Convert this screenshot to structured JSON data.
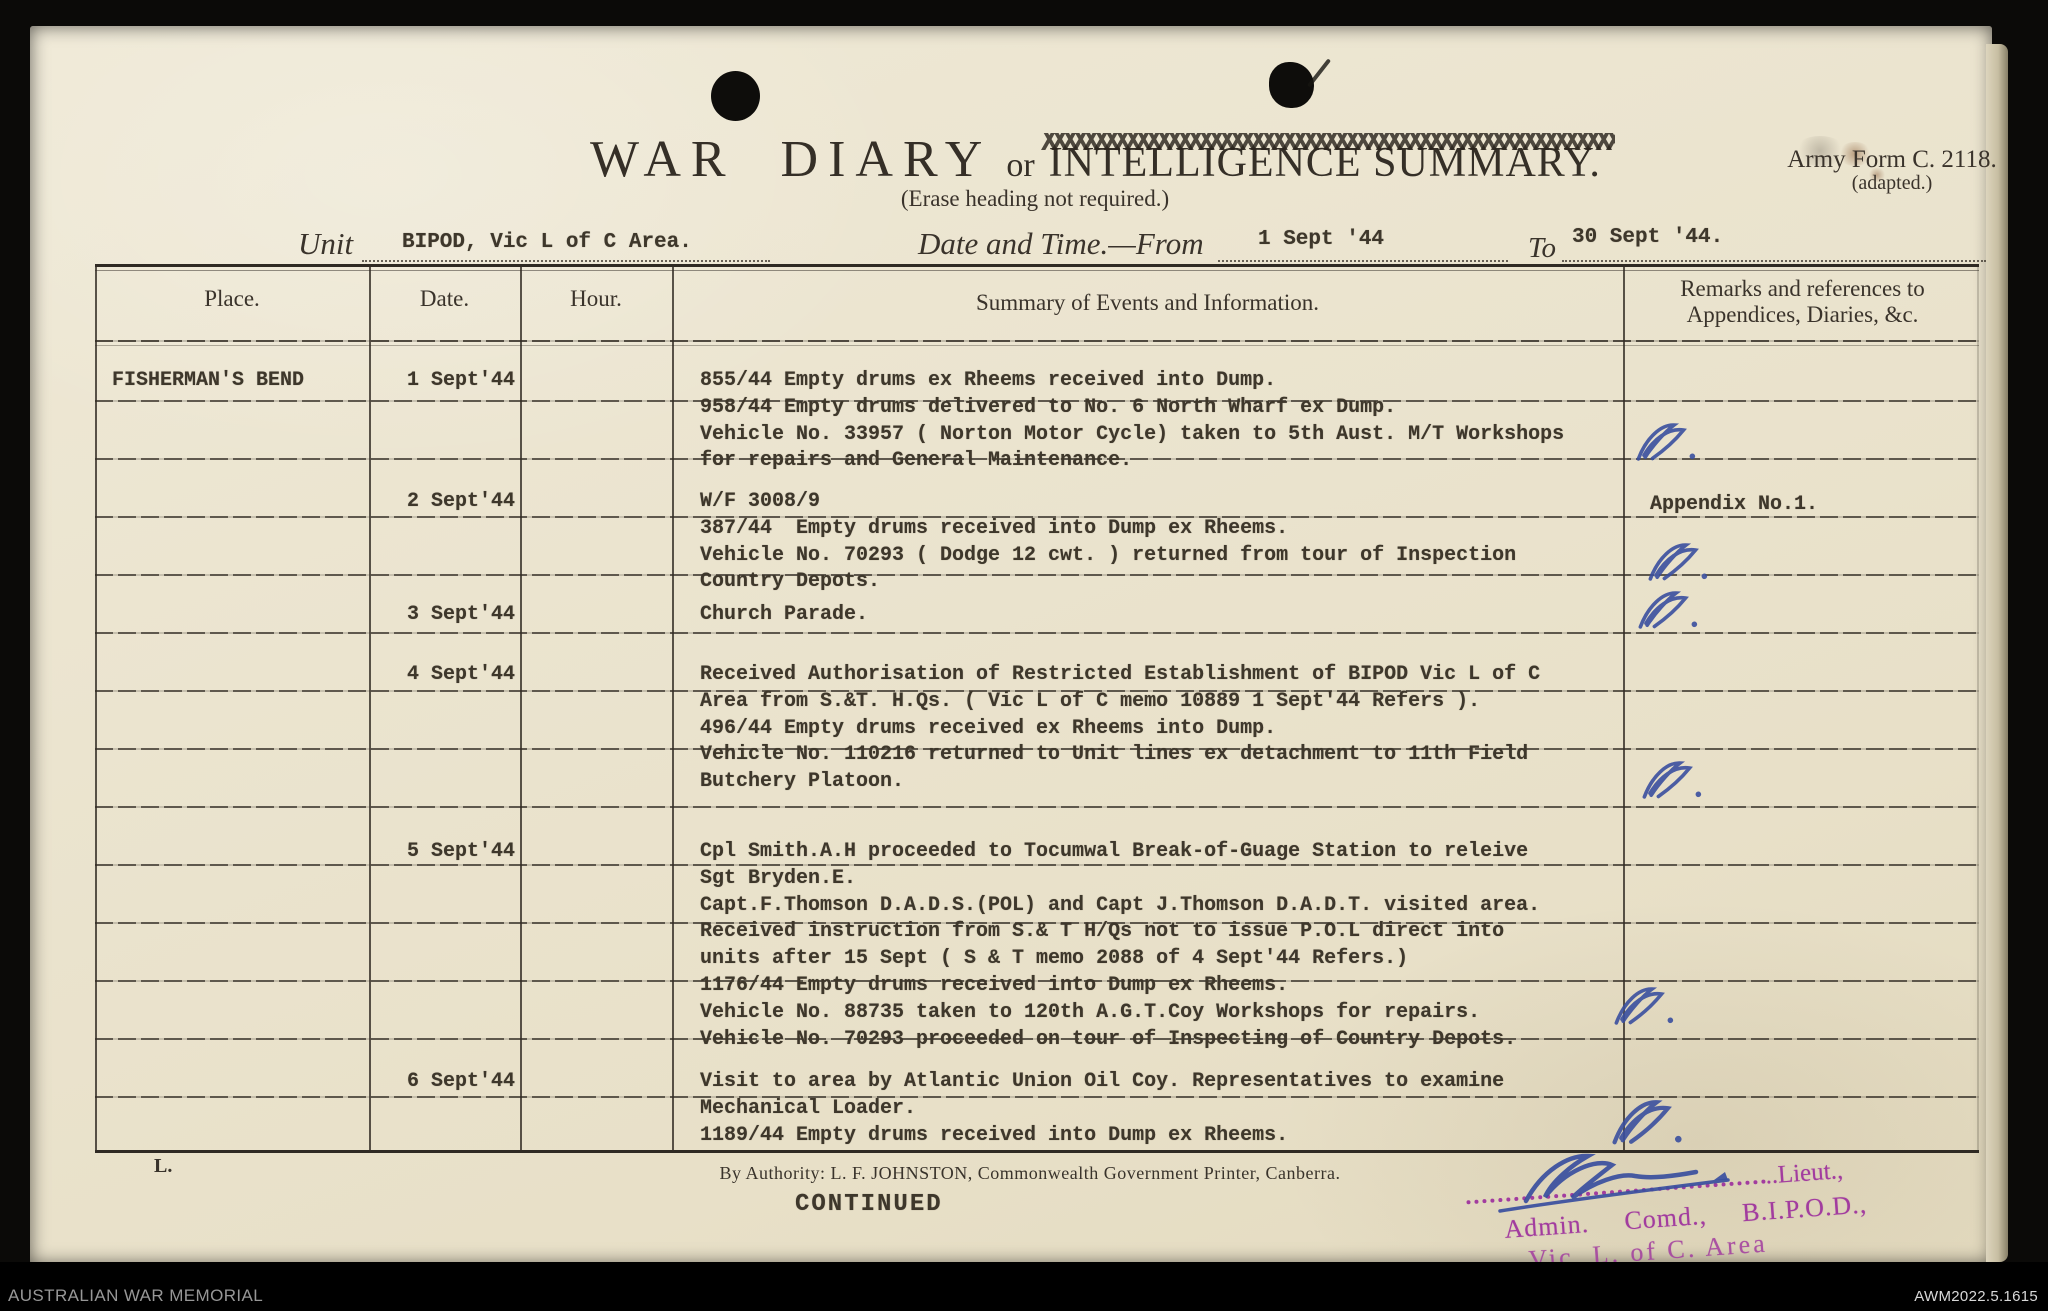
{
  "form": {
    "title_main": "WAR  DIARY",
    "title_or": "or",
    "title_alt": "INTELLIGENCE SUMMARY.",
    "erase_note": "(Erase heading not required.)",
    "army_form_line1": "Army Form C. 2118.",
    "army_form_line2": "(adapted.)",
    "unit_label": "Unit",
    "unit_value": "BIPOD, Vic L of C Area.",
    "datetime_label": "Date and Time.—From",
    "from_value": "1 Sept '44",
    "to_label": "To",
    "to_value": "30 Sept '44.",
    "authority_line": "By Authority: L. F. JOHNSTON, Commonwealth Government Printer, Canberra.",
    "plate_mark": "L.",
    "continued": "CONTINUED"
  },
  "table_headers": {
    "place": "Place.",
    "date": "Date.",
    "hour": "Hour.",
    "summary": "Summary of Events and Information.",
    "remarks_line1": "Remarks and references to",
    "remarks_line2": "Appendices, Diaries, &c."
  },
  "entries": [
    {
      "place": "FISHERMAN'S BEND",
      "date": "1 Sept'44",
      "initialled": true,
      "lines": [
        "855/44 Empty drums ex Rheems received into Dump.",
        "958/44 Empty drums delivered to No. 6 North Wharf ex Dump.",
        "Vehicle No. 33957 ( Norton Motor Cycle) taken to 5th Aust. M/T Workshops",
        "for repairs and General Maintenance."
      ]
    },
    {
      "date": "2 Sept'44",
      "remark": "Appendix No.1.",
      "initialled": true,
      "lines": [
        "W/F 3008/9",
        "387/44  Empty drums received into Dump ex Rheems.",
        "Vehicle No. 70293 ( Dodge 12 cwt. ) returned from tour of Inspection",
        "Country Depots."
      ]
    },
    {
      "date": "3 Sept'44",
      "initialled": true,
      "lines": [
        "Church Parade."
      ]
    },
    {
      "date": "4 Sept'44",
      "initialled": true,
      "lines": [
        "Received Authorisation of Restricted Establishment of BIPOD Vic L of C",
        "Area from S.&T. H.Qs. ( Vic L of C memo 10889 1 Sept'44 Refers ).",
        "496/44 Empty drums received ex Rheems into Dump.",
        "Vehicle No. 110216 returned to Unit lines ex detachment to 11th Field",
        "Butchery Platoon."
      ]
    },
    {
      "date": "5 Sept'44",
      "initialled": true,
      "lines": [
        "Cpl Smith.A.H proceeded to Tocumwal Break-of-Guage Station to releive",
        "Sgt Bryden.E.",
        "Capt.F.Thomson D.A.D.S.(POL) and Capt J.Thomson D.A.D.T. visited area.",
        "Received instruction from S.& T H/Qs not to issue P.O.L direct into",
        "units after 15 Sept ( S & T memo 2088 of 4 Sept'44 Refers.)",
        "1176/44 Empty drums received into Dump ex Rheems.",
        "Vehicle No. 88735 taken to 120th A.G.T.Coy Workshops for repairs.",
        "Vehicle No. 70293 proceeded on tour of Inspecting of Country Depots."
      ]
    },
    {
      "date": "6 Sept'44",
      "initialled": true,
      "lines": [
        "Visit to area by Atlantic Union Oil Coy. Representatives to examine",
        "Mechanical Loader.",
        "1189/44 Empty drums received into Dump ex Rheems."
      ]
    }
  ],
  "stamp": {
    "line1_suffix": "..Lieut.,",
    "line2": "Admin. Comd., B.I.P.O.D.,",
    "line3": "Vic. L. of C. Area"
  },
  "archive_bar": {
    "credit": "AUSTRALIAN WAR MEMORIAL",
    "id": "AWM2022.5.1615"
  },
  "colors": {
    "paper": "#eae3cd",
    "typewriter_ink": "#3e372b",
    "printed_ink": "#38322a",
    "blue_ink": "#3a4f9f",
    "stamp_purple": "#a23c9f"
  }
}
